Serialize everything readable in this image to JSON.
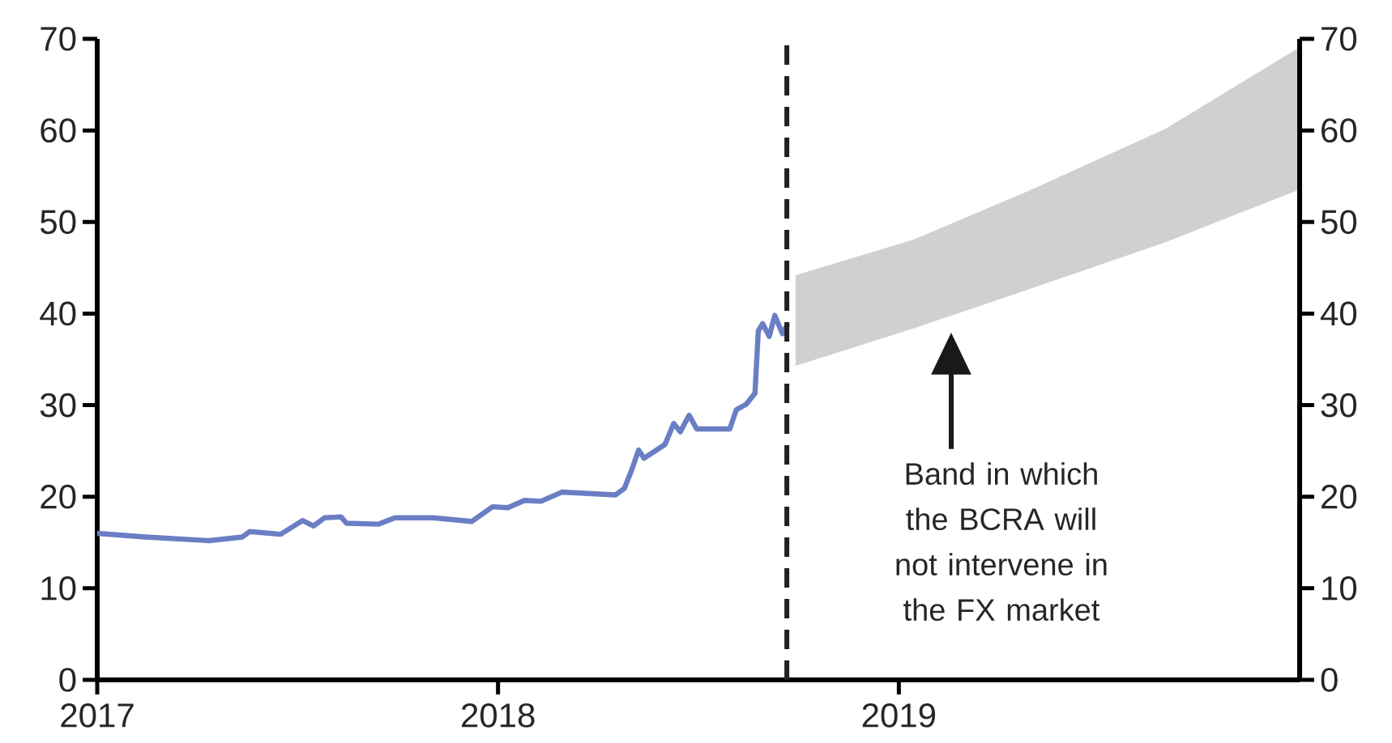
{
  "chart_data": {
    "type": "line",
    "xlim": [
      "2017-01-01",
      "2020-01-01"
    ],
    "xticks": [
      "2017",
      "2018",
      "2019"
    ],
    "ylim": [
      0,
      70
    ],
    "yticks": [
      0,
      10,
      20,
      30,
      40,
      50,
      60,
      70
    ],
    "y2lim": [
      0,
      70
    ],
    "y2ticks": [
      0,
      10,
      20,
      30,
      40,
      50,
      60,
      70
    ],
    "series": [
      {
        "color": "#6a7ec4",
        "x": [
          "2017-01-01",
          "2017-02-14",
          "2017-04-13",
          "2017-05-13",
          "2017-05-20",
          "2017-06-17",
          "2017-07-07",
          "2017-07-17",
          "2017-07-27",
          "2017-08-11",
          "2017-08-16",
          "2017-09-14",
          "2017-09-29",
          "2017-11-03",
          "2017-12-08",
          "2017-12-27",
          "2018-01-10",
          "2018-01-25",
          "2018-02-09",
          "2018-02-28",
          "2018-04-18",
          "2018-04-26",
          "2018-05-03",
          "2018-05-09",
          "2018-05-14",
          "2018-06-02",
          "2018-06-10",
          "2018-06-16",
          "2018-06-24",
          "2018-07-01",
          "2018-07-31",
          "2018-08-06",
          "2018-08-15",
          "2018-08-23",
          "2018-08-26",
          "2018-08-30",
          "2018-09-05",
          "2018-09-10",
          "2018-09-17",
          "2018-09-22"
        ],
        "values": [
          16.0,
          15.6,
          15.2,
          15.6,
          16.2,
          15.9,
          17.4,
          16.8,
          17.7,
          17.8,
          17.1,
          17.0,
          17.7,
          17.7,
          17.3,
          18.9,
          18.8,
          19.6,
          19.5,
          20.5,
          20.2,
          20.9,
          23.0,
          25.1,
          24.2,
          25.7,
          28.0,
          27.1,
          28.9,
          27.4,
          27.4,
          29.5,
          30.1,
          31.3,
          38.1,
          38.9,
          37.5,
          39.8,
          37.8,
          38.9
        ]
      },
      {
        "type": "area",
        "color": "#d0d0d0",
        "x": [
          "2018-09-29",
          "2019-01-15",
          "2019-05-03",
          "2019-09-01",
          "2019-12-31"
        ],
        "values": [
          null,
          null,
          null,
          null,
          null
        ],
        "upper": [
          44.2,
          48.1,
          53.6,
          60.2,
          69.0
        ],
        "lower": [
          34.3,
          38.4,
          42.8,
          47.8,
          53.5
        ]
      }
    ],
    "ref_lines": [
      {
        "axis": "x",
        "value": "2018-09-21",
        "color": "#231f20",
        "line_style": "dashed"
      }
    ],
    "annotations": [
      "Band in which the BCRA will not intervene in the FX market"
    ]
  }
}
